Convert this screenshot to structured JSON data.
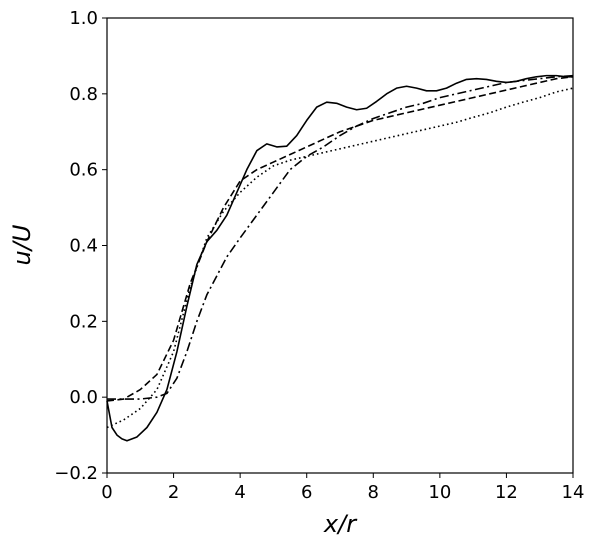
{
  "chart_data": {
    "type": "line",
    "xlabel": "x/r",
    "ylabel": "u/U",
    "xlim": [
      0,
      14
    ],
    "ylim": [
      -0.2,
      1.0
    ],
    "grid": false,
    "legend": "none",
    "xticks": [
      0,
      2,
      4,
      6,
      8,
      10,
      12,
      14
    ],
    "yticks": [
      -0.2,
      0.0,
      0.2,
      0.4,
      0.6,
      0.8,
      1.0
    ],
    "xtick_labels": [
      "0",
      "2",
      "4",
      "6",
      "8",
      "10",
      "12",
      "14"
    ],
    "ytick_labels": [
      "−0.2",
      "0.0",
      "0.2",
      "0.4",
      "0.6",
      "0.8",
      "1.0"
    ],
    "series": [
      {
        "style": "solid",
        "color": "#000000",
        "points": [
          [
            0,
            -0.01
          ],
          [
            0.15,
            -0.08
          ],
          [
            0.3,
            -0.1
          ],
          [
            0.45,
            -0.11
          ],
          [
            0.6,
            -0.115
          ],
          [
            0.9,
            -0.105
          ],
          [
            1.2,
            -0.08
          ],
          [
            1.5,
            -0.04
          ],
          [
            1.8,
            0.02
          ],
          [
            2.1,
            0.12
          ],
          [
            2.4,
            0.24
          ],
          [
            2.7,
            0.35
          ],
          [
            3.0,
            0.41
          ],
          [
            3.3,
            0.44
          ],
          [
            3.6,
            0.48
          ],
          [
            3.9,
            0.54
          ],
          [
            4.2,
            0.6
          ],
          [
            4.5,
            0.65
          ],
          [
            4.8,
            0.668
          ],
          [
            5.1,
            0.66
          ],
          [
            5.4,
            0.662
          ],
          [
            5.7,
            0.69
          ],
          [
            6.0,
            0.73
          ],
          [
            6.3,
            0.765
          ],
          [
            6.6,
            0.778
          ],
          [
            6.9,
            0.775
          ],
          [
            7.2,
            0.765
          ],
          [
            7.5,
            0.758
          ],
          [
            7.8,
            0.762
          ],
          [
            8.1,
            0.78
          ],
          [
            8.4,
            0.8
          ],
          [
            8.7,
            0.815
          ],
          [
            9.0,
            0.82
          ],
          [
            9.3,
            0.815
          ],
          [
            9.6,
            0.808
          ],
          [
            9.9,
            0.808
          ],
          [
            10.2,
            0.815
          ],
          [
            10.5,
            0.828
          ],
          [
            10.8,
            0.838
          ],
          [
            11.1,
            0.84
          ],
          [
            11.4,
            0.838
          ],
          [
            11.7,
            0.833
          ],
          [
            12.0,
            0.83
          ],
          [
            12.3,
            0.833
          ],
          [
            12.6,
            0.84
          ],
          [
            12.9,
            0.845
          ],
          [
            13.2,
            0.848
          ],
          [
            13.5,
            0.848
          ],
          [
            13.8,
            0.845
          ],
          [
            14.0,
            0.845
          ]
        ]
      },
      {
        "style": "dashed",
        "color": "#000000",
        "points": [
          [
            0,
            -0.01
          ],
          [
            0.5,
            -0.005
          ],
          [
            1.0,
            0.02
          ],
          [
            1.5,
            0.06
          ],
          [
            2.0,
            0.15
          ],
          [
            2.5,
            0.3
          ],
          [
            3.0,
            0.41
          ],
          [
            3.5,
            0.5
          ],
          [
            4.0,
            0.57
          ],
          [
            4.5,
            0.6
          ],
          [
            5.0,
            0.62
          ],
          [
            5.5,
            0.64
          ],
          [
            6.0,
            0.66
          ],
          [
            6.5,
            0.68
          ],
          [
            7.0,
            0.7
          ],
          [
            7.5,
            0.715
          ],
          [
            8.0,
            0.73
          ],
          [
            8.5,
            0.74
          ],
          [
            9.0,
            0.75
          ],
          [
            9.5,
            0.76
          ],
          [
            10.0,
            0.77
          ],
          [
            10.5,
            0.78
          ],
          [
            11.0,
            0.79
          ],
          [
            11.5,
            0.8
          ],
          [
            12.0,
            0.81
          ],
          [
            12.5,
            0.82
          ],
          [
            13.0,
            0.83
          ],
          [
            13.5,
            0.84
          ],
          [
            14.0,
            0.845
          ]
        ]
      },
      {
        "style": "dashdot",
        "color": "#000000",
        "points": [
          [
            0,
            -0.005
          ],
          [
            0.5,
            -0.005
          ],
          [
            1.0,
            -0.005
          ],
          [
            1.5,
            0.0
          ],
          [
            1.8,
            0.01
          ],
          [
            2.1,
            0.05
          ],
          [
            2.4,
            0.12
          ],
          [
            2.7,
            0.2
          ],
          [
            3.0,
            0.27
          ],
          [
            3.3,
            0.32
          ],
          [
            3.6,
            0.37
          ],
          [
            4.0,
            0.42
          ],
          [
            4.5,
            0.48
          ],
          [
            5.0,
            0.54
          ],
          [
            5.5,
            0.6
          ],
          [
            6.0,
            0.635
          ],
          [
            6.5,
            0.66
          ],
          [
            7.0,
            0.69
          ],
          [
            7.5,
            0.715
          ],
          [
            8.0,
            0.735
          ],
          [
            8.5,
            0.75
          ],
          [
            9.0,
            0.765
          ],
          [
            9.5,
            0.775
          ],
          [
            10.0,
            0.79
          ],
          [
            10.5,
            0.8
          ],
          [
            11.0,
            0.81
          ],
          [
            11.5,
            0.82
          ],
          [
            12.0,
            0.83
          ],
          [
            12.5,
            0.835
          ],
          [
            13.0,
            0.84
          ],
          [
            13.5,
            0.845
          ],
          [
            14.0,
            0.848
          ]
        ]
      },
      {
        "style": "dotted",
        "color": "#000000",
        "points": [
          [
            0,
            -0.08
          ],
          [
            0.5,
            -0.06
          ],
          [
            1.0,
            -0.03
          ],
          [
            1.5,
            0.02
          ],
          [
            2.0,
            0.12
          ],
          [
            2.5,
            0.29
          ],
          [
            3.0,
            0.42
          ],
          [
            3.5,
            0.49
          ],
          [
            4.0,
            0.54
          ],
          [
            4.5,
            0.58
          ],
          [
            5.0,
            0.61
          ],
          [
            5.5,
            0.625
          ],
          [
            6.0,
            0.635
          ],
          [
            6.5,
            0.645
          ],
          [
            7.0,
            0.655
          ],
          [
            7.5,
            0.665
          ],
          [
            8.0,
            0.675
          ],
          [
            8.5,
            0.685
          ],
          [
            9.0,
            0.695
          ],
          [
            9.5,
            0.705
          ],
          [
            10.0,
            0.715
          ],
          [
            10.5,
            0.725
          ],
          [
            11.0,
            0.738
          ],
          [
            11.5,
            0.75
          ],
          [
            12.0,
            0.765
          ],
          [
            12.5,
            0.778
          ],
          [
            13.0,
            0.79
          ],
          [
            13.5,
            0.805
          ],
          [
            14.0,
            0.815
          ]
        ]
      }
    ]
  }
}
